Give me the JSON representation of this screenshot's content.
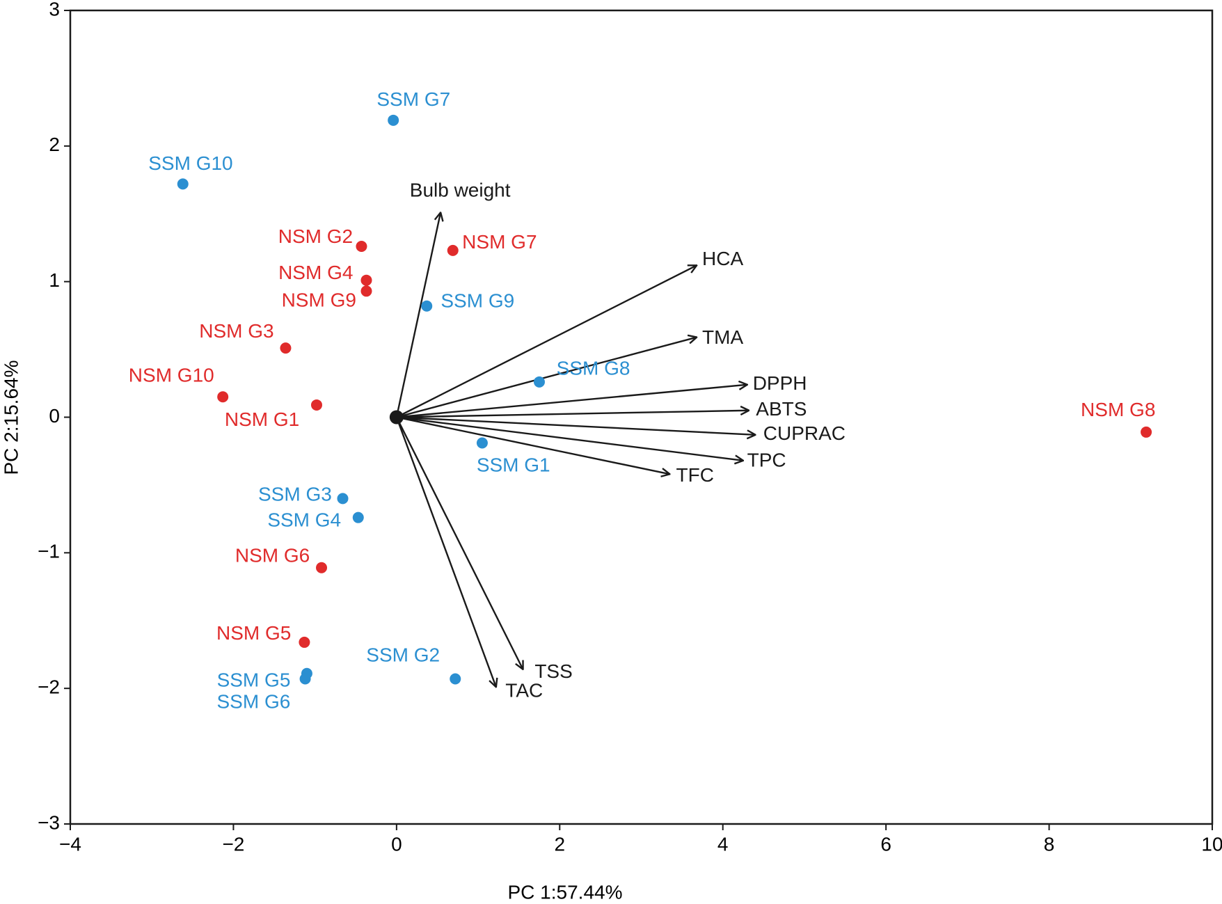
{
  "chart_data": {
    "type": "biplot",
    "xlabel": "PC 1:57.44%",
    "ylabel": "PC 2:15.64%",
    "xlim": [
      -4,
      10
    ],
    "ylim": [
      -3,
      3
    ],
    "xticks": [
      {
        "value": -4,
        "label": "−4"
      },
      {
        "value": -2,
        "label": "−2"
      },
      0,
      2,
      4,
      6,
      8,
      10
    ],
    "yticks": [
      {
        "value": -3,
        "label": "−3"
      },
      {
        "value": -2,
        "label": "−2"
      },
      {
        "value": -1,
        "label": "−1"
      },
      0,
      1,
      2,
      3
    ],
    "series": [
      {
        "color": "#e02b2b",
        "labels": [
          "NSM G2",
          "NSM G7",
          "NSM G4",
          "NSM G9",
          "NSM G3",
          "NSM G10",
          "NSM G1",
          "NSM G6",
          "NSM G5",
          "NSM G8"
        ],
        "x": [
          -0.43,
          0.69,
          -0.37,
          -0.37,
          -1.36,
          -2.13,
          -0.98,
          -0.92,
          -1.13,
          9.19
        ],
        "y": [
          1.26,
          1.23,
          1.01,
          0.93,
          0.51,
          0.15,
          0.09,
          -1.11,
          -1.66,
          -0.11
        ]
      },
      {
        "color": "#2b8fd1",
        "labels": [
          "SSM G7",
          "SSM G10",
          "SSM G9",
          "SSM G8",
          "SSM G1",
          "SSM G3",
          "SSM G4",
          "SSM G2",
          "SSM G5",
          "SSM G6"
        ],
        "x": [
          -0.04,
          -2.62,
          0.37,
          1.75,
          1.05,
          -0.66,
          -0.47,
          0.72,
          -1.1,
          -1.12
        ],
        "y": [
          2.19,
          1.72,
          0.82,
          0.26,
          -0.19,
          -0.6,
          -0.74,
          -1.93,
          -1.89,
          -1.93
        ]
      }
    ],
    "vectors": {
      "color": "#1a1a1a",
      "labels": [
        "Bulb weight",
        "HCA",
        "TMA",
        "DPPH",
        "ABTS",
        "CUPRAC",
        "TPC",
        "TFC",
        "TSS",
        "TAC"
      ],
      "x": [
        0.54,
        3.68,
        3.68,
        4.3,
        4.32,
        4.4,
        4.25,
        3.35,
        1.55,
        1.22
      ],
      "y": [
        1.51,
        1.12,
        0.59,
        0.24,
        0.05,
        -0.13,
        -0.32,
        -0.42,
        -1.86,
        -1.99
      ]
    }
  }
}
